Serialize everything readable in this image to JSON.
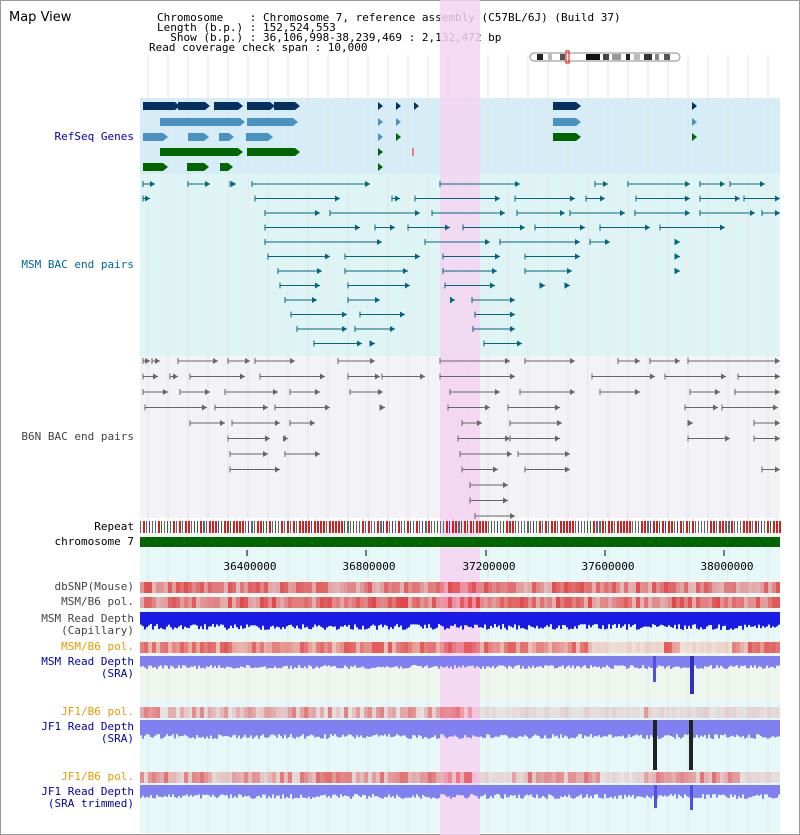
{
  "title": "Map View",
  "header": {
    "chromosome_line": "Chromosome    : Chromosome 7, reference assembly (C57BL/6J) (Build 37)",
    "length_line": "Length (b.p.) : 152,524,553",
    "show_line": "  Show (b.p.) : 36,106,998-38,239,469 : 2,132,472 bp",
    "coverage_line": "Read coverage check span : 10,000"
  },
  "tracks": {
    "refseq": "RefSeq Genes",
    "msm_bac": "MSM BAC end pairs",
    "b6n_bac": "B6N BAC end pairs",
    "repeat": "Repeat",
    "chromosome": "chromosome 7",
    "dbsnp": "dbSNP(Mouse)",
    "msm_b6_pol_1": "MSM/B6 pol.",
    "msm_depth_cap_1": "MSM Read Depth",
    "msm_depth_cap_2": "(Capillary)",
    "msm_b6_pol_2": "MSM/B6 pol.",
    "msm_depth_sra_1": "MSM Read Depth",
    "msm_depth_sra_2": "(SRA)",
    "jf1_b6_pol_1": "JF1/B6 pol.",
    "jf1_depth_sra_1": "JF1 Read Depth",
    "jf1_depth_sra_2": "(SRA)",
    "jf1_b6_pol_2": "JF1/B6 pol.",
    "jf1_depth_trim_1": "JF1 Read Depth",
    "jf1_depth_trim_2": "(SRA trimmed)"
  },
  "axis_ticks": [
    "36400000",
    "36800000",
    "37200000",
    "37600000",
    "38000000"
  ],
  "colors": {
    "refseq_bg": "#d6ecf6",
    "msm_bg": "#dff4f4",
    "b6n_bg": "#f2f2f7",
    "highlight": "#f4d3f1",
    "chromosome_bar": "#006600",
    "gene_dark": "#06305e",
    "gene_mid": "#4b92bf",
    "gene_green": "#006600",
    "msm_pair": "#006680",
    "b6n_pair": "#666666",
    "depth_capillary": "#1a1ae6",
    "depth_sra": "#8080f0",
    "snp_red": "#e03030"
  }
}
